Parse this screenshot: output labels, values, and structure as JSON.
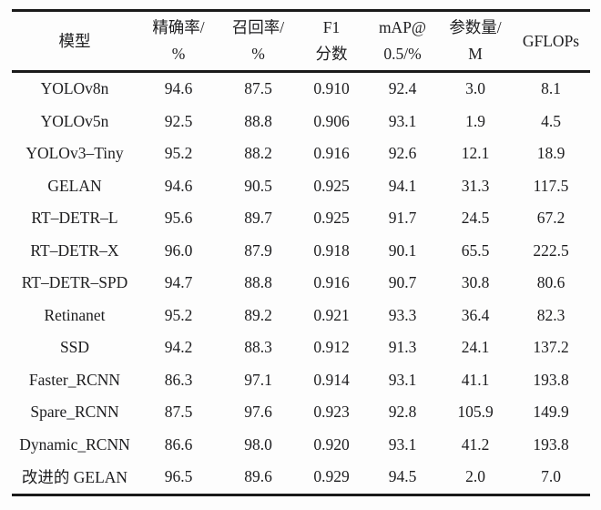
{
  "colors": {
    "text": "#1d1d1f",
    "rule": "#1a1a1a",
    "background": "#fdfdfd"
  },
  "table": {
    "columns": [
      {
        "line1": "模型",
        "line2": ""
      },
      {
        "line1": "精确率/",
        "line2": "%"
      },
      {
        "line1": "召回率/",
        "line2": "%"
      },
      {
        "line1": "F1",
        "line2": "分数"
      },
      {
        "line1": "mAP@",
        "line2": "0.5/%"
      },
      {
        "line1": "参数量/",
        "line2": "M"
      },
      {
        "line1": "GFLOPs",
        "line2": ""
      }
    ],
    "rows": [
      [
        "YOLOv8n",
        "94.6",
        "87.5",
        "0.910",
        "92.4",
        "3.0",
        "8.1"
      ],
      [
        "YOLOv5n",
        "92.5",
        "88.8",
        "0.906",
        "93.1",
        "1.9",
        "4.5"
      ],
      [
        "YOLOv3–Tiny",
        "95.2",
        "88.2",
        "0.916",
        "92.6",
        "12.1",
        "18.9"
      ],
      [
        "GELAN",
        "94.6",
        "90.5",
        "0.925",
        "94.1",
        "31.3",
        "117.5"
      ],
      [
        "RT–DETR–L",
        "95.6",
        "89.7",
        "0.925",
        "91.7",
        "24.5",
        "67.2"
      ],
      [
        "RT–DETR–X",
        "96.0",
        "87.9",
        "0.918",
        "90.1",
        "65.5",
        "222.5"
      ],
      [
        "RT–DETR–SPD",
        "94.7",
        "88.8",
        "0.916",
        "90.7",
        "30.8",
        "80.6"
      ],
      [
        "Retinanet",
        "95.2",
        "89.2",
        "0.921",
        "93.3",
        "36.4",
        "82.3"
      ],
      [
        "SSD",
        "94.2",
        "88.3",
        "0.912",
        "91.3",
        "24.1",
        "137.2"
      ],
      [
        "Faster_RCNN",
        "86.3",
        "97.1",
        "0.914",
        "93.1",
        "41.1",
        "193.8"
      ],
      [
        "Spare_RCNN",
        "87.5",
        "97.6",
        "0.923",
        "92.8",
        "105.9",
        "149.9"
      ],
      [
        "Dynamic_RCNN",
        "86.6",
        "98.0",
        "0.920",
        "93.1",
        "41.2",
        "193.8"
      ],
      [
        "改进的 GELAN",
        "96.5",
        "89.6",
        "0.929",
        "94.5",
        "2.0",
        "7.0"
      ]
    ]
  }
}
